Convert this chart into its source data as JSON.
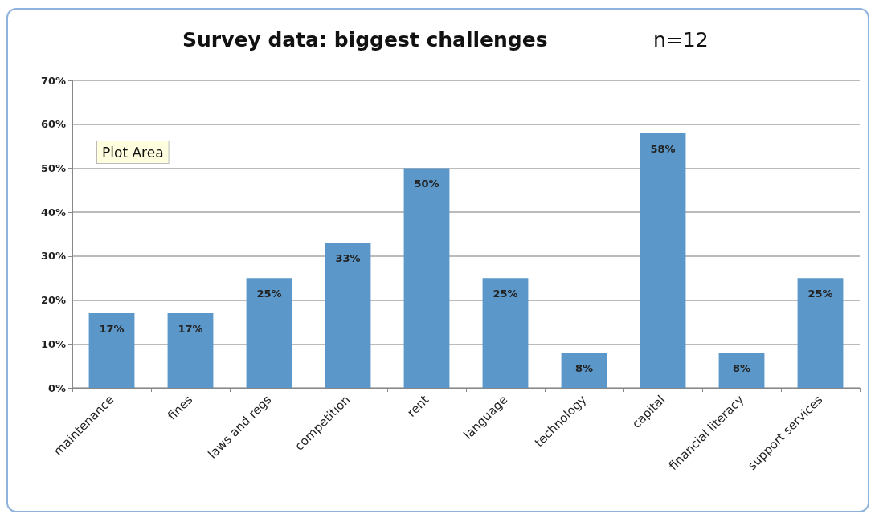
{
  "chart_data": {
    "type": "bar",
    "title": "Survey data: biggest challenges",
    "subtitle": "n=12",
    "categories": [
      "maintenance",
      "fines",
      "laws and regs",
      "competition",
      "rent",
      "language",
      "technology",
      "capital",
      "financial literacy",
      "support services"
    ],
    "values": [
      17,
      17,
      25,
      33,
      50,
      25,
      8,
      58,
      8,
      25
    ],
    "color": "#5b97c8",
    "ylim": [
      0,
      70
    ],
    "yticks": [
      {
        "value": 0,
        "label": "0%"
      },
      {
        "value": 10,
        "label": "10%"
      },
      {
        "value": 20,
        "label": "20%"
      },
      {
        "value": 30,
        "label": "30%"
      },
      {
        "value": 40,
        "label": "40%"
      },
      {
        "value": 50,
        "label": "50%"
      },
      {
        "value": 60,
        "label": "60%"
      },
      {
        "value": 70,
        "label": "70%"
      }
    ],
    "value_labels": [
      "17%",
      "17%",
      "25%",
      "33%",
      "50%",
      "25%",
      "8%",
      "58%",
      "8%",
      "25%"
    ],
    "grid": "y",
    "annotations": [
      "Plot Area"
    ]
  }
}
